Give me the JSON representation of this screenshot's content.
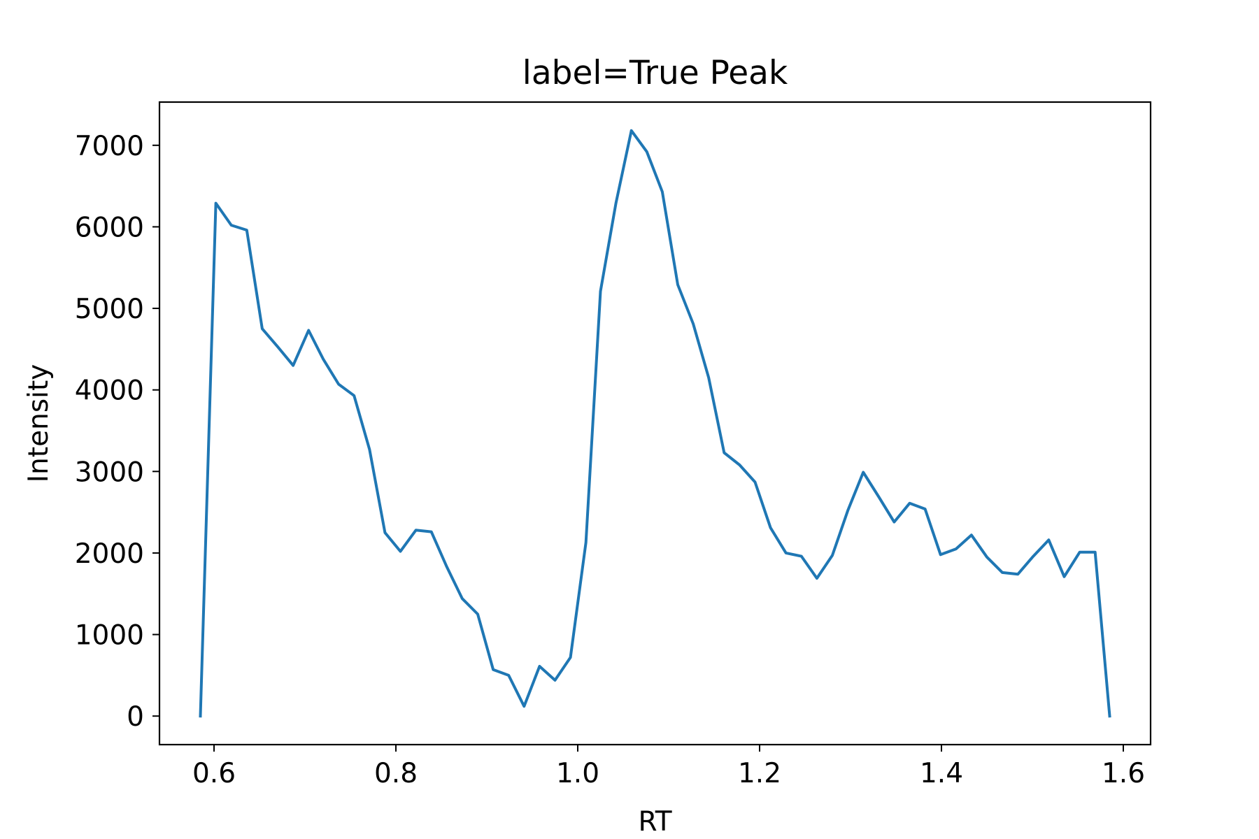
{
  "chart_data": {
    "type": "line",
    "title": "label=True Peak",
    "xlabel": "RT",
    "ylabel": "Intensity",
    "xlim": [
      0.54,
      1.63
    ],
    "ylim": [
      -350,
      7530
    ],
    "xticks": [
      0.6,
      0.8,
      1.0,
      1.2,
      1.4,
      1.6
    ],
    "xtick_labels": [
      "0.6",
      "0.8",
      "1.0",
      "1.2",
      "1.4",
      "1.6"
    ],
    "yticks": [
      0,
      1000,
      2000,
      3000,
      4000,
      5000,
      6000,
      7000
    ],
    "ytick_labels": [
      "0",
      "1000",
      "2000",
      "3000",
      "4000",
      "5000",
      "6000",
      "7000"
    ],
    "grid": false,
    "color": "#1f77b4",
    "series": [
      {
        "x": [
          0.585,
          0.602,
          0.619,
          0.636,
          0.653,
          0.67,
          0.687,
          0.704,
          0.72,
          0.737,
          0.754,
          0.771,
          0.788,
          0.805,
          0.822,
          0.839,
          0.856,
          0.873,
          0.89,
          0.907,
          0.924,
          0.941,
          0.958,
          0.975,
          0.992,
          1.009,
          1.025,
          1.042,
          1.059,
          1.076,
          1.093,
          1.11,
          1.127,
          1.144,
          1.161,
          1.178,
          1.195,
          1.212,
          1.229,
          1.246,
          1.263,
          1.28,
          1.297,
          1.314,
          1.331,
          1.348,
          1.365,
          1.382,
          1.399,
          1.416,
          1.433,
          1.45,
          1.467,
          1.484,
          1.501,
          1.518,
          1.535,
          1.552,
          1.569,
          1.585
        ],
        "values": [
          0,
          6290,
          6020,
          5960,
          4750,
          4530,
          4300,
          4730,
          4380,
          4070,
          3930,
          3270,
          2250,
          2020,
          2280,
          2260,
          1830,
          1440,
          1250,
          570,
          500,
          120,
          610,
          440,
          720,
          2130,
          5210,
          6290,
          7180,
          6920,
          6430,
          5290,
          4810,
          4150,
          3230,
          3080,
          2870,
          2310,
          2000,
          1960,
          1690,
          1970,
          2520,
          2990,
          2690,
          2380,
          2610,
          2540,
          1980,
          2050,
          2220,
          1950,
          1760,
          1740,
          1960,
          2160,
          1710,
          2010,
          2010,
          0
        ]
      }
    ]
  }
}
